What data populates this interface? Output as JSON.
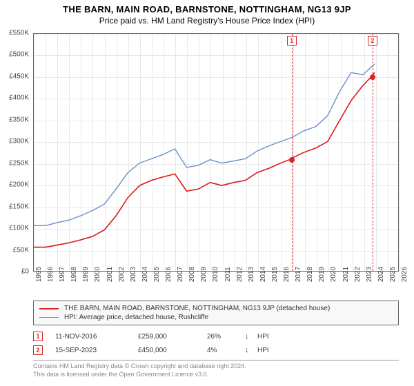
{
  "title": "THE BARN, MAIN ROAD, BARNSTONE, NOTTINGHAM, NG13 9JP",
  "subtitle": "Price paid vs. HM Land Registry's House Price Index (HPI)",
  "chart": {
    "type": "line",
    "xlim": [
      1995,
      2026
    ],
    "ylim": [
      0,
      550000
    ],
    "ytick_step": 50000,
    "yticks": [
      "£0",
      "£50K",
      "£100K",
      "£150K",
      "£200K",
      "£250K",
      "£300K",
      "£350K",
      "£400K",
      "£450K",
      "£500K",
      "£550K"
    ],
    "xticks": [
      1995,
      1996,
      1997,
      1998,
      1999,
      2000,
      2001,
      2002,
      2003,
      2004,
      2005,
      2006,
      2007,
      2008,
      2009,
      2010,
      2011,
      2012,
      2013,
      2014,
      2015,
      2016,
      2017,
      2018,
      2019,
      2020,
      2021,
      2022,
      2023,
      2024,
      2025,
      2026
    ],
    "background_color": "#ffffff",
    "grid_color": "#e8e8e8",
    "border_color": "#666666",
    "series": [
      {
        "name": "hpi",
        "label": "HPI: Average price, detached house, Rushcliffe",
        "color": "#6a8fc9",
        "line_width": 1.4,
        "x": [
          1995,
          1996,
          1997,
          1998,
          1999,
          2000,
          2001,
          2002,
          2003,
          2004,
          2005,
          2006,
          2007,
          2008,
          2009,
          2010,
          2011,
          2012,
          2013,
          2014,
          2015,
          2016,
          2017,
          2018,
          2019,
          2020,
          2021,
          2022,
          2023,
          2024
        ],
        "y": [
          105000,
          105000,
          112000,
          118000,
          128000,
          140000,
          155000,
          190000,
          228000,
          250000,
          260000,
          270000,
          283000,
          240000,
          245000,
          258000,
          250000,
          255000,
          260000,
          278000,
          290000,
          300000,
          310000,
          325000,
          335000,
          360000,
          415000,
          460000,
          455000,
          480000
        ]
      },
      {
        "name": "price_paid",
        "label": "THE BARN, MAIN ROAD, BARNSTONE, NOTTINGHAM, NG13 9JP (detached house)",
        "color": "#d82424",
        "line_width": 1.7,
        "x": [
          1995,
          1996,
          1997,
          1998,
          1999,
          2000,
          2001,
          2002,
          2003,
          2004,
          2005,
          2006,
          2007,
          2008,
          2009,
          2010,
          2011,
          2012,
          2013,
          2014,
          2015,
          2016,
          2016.86,
          2017,
          2018,
          2019,
          2020,
          2021,
          2022,
          2023,
          2023.71,
          2024
        ],
        "y": [
          55000,
          55000,
          60000,
          65000,
          72000,
          80000,
          95000,
          128000,
          170000,
          198000,
          210000,
          218000,
          225000,
          185000,
          190000,
          205000,
          198000,
          205000,
          210000,
          228000,
          238000,
          250000,
          259000,
          262000,
          275000,
          285000,
          300000,
          348000,
          395000,
          430000,
          450000,
          460000
        ]
      }
    ],
    "markers": [
      {
        "n": "1",
        "x": 2016.86,
        "y": 259000,
        "color": "#d82424"
      },
      {
        "n": "2",
        "x": 2023.71,
        "y": 450000,
        "color": "#d82424"
      }
    ],
    "point_radius": 4
  },
  "legend": {
    "items": [
      {
        "color": "#d82424",
        "width": 2,
        "label": "THE BARN, MAIN ROAD, BARNSTONE, NOTTINGHAM, NG13 9JP (detached house)"
      },
      {
        "color": "#6a8fc9",
        "width": 1.5,
        "label": "HPI: Average price, detached house, Rushcliffe"
      }
    ]
  },
  "sales": [
    {
      "n": "1",
      "date": "11-NOV-2016",
      "price": "£259,000",
      "pct": "26%",
      "arrow": "↓",
      "vs": "HPI",
      "color": "#d82424"
    },
    {
      "n": "2",
      "date": "15-SEP-2023",
      "price": "£450,000",
      "pct": "4%",
      "arrow": "↓",
      "vs": "HPI",
      "color": "#d82424"
    }
  ],
  "footnote": {
    "line1": "Contains HM Land Registry data © Crown copyright and database right 2024.",
    "line2": "This data is licensed under the Open Government Licence v3.0."
  }
}
